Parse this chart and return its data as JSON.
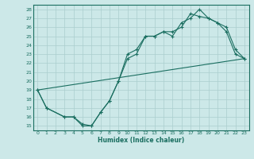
{
  "title": "",
  "xlabel": "Humidex (Indice chaleur)",
  "ylabel": "",
  "xlim": [
    -0.5,
    23.5
  ],
  "ylim": [
    14.5,
    28.5
  ],
  "yticks": [
    15,
    16,
    17,
    18,
    19,
    20,
    21,
    22,
    23,
    24,
    25,
    26,
    27,
    28
  ],
  "xticks": [
    0,
    1,
    2,
    3,
    4,
    5,
    6,
    7,
    8,
    9,
    10,
    11,
    12,
    13,
    14,
    15,
    16,
    17,
    18,
    19,
    20,
    21,
    22,
    23
  ],
  "bg_color": "#cce8e8",
  "grid_color": "#aacece",
  "line_color": "#1a6e60",
  "line1_x": [
    0,
    1,
    3,
    4,
    5,
    6,
    7,
    8,
    9,
    10,
    11,
    12,
    13,
    14,
    15,
    16,
    17,
    18,
    19,
    20,
    21,
    22,
    23
  ],
  "line1_y": [
    19,
    17,
    16,
    16,
    15,
    15,
    16.5,
    17.8,
    20,
    22.5,
    23,
    25,
    25,
    25.5,
    25,
    26.5,
    27,
    28,
    27,
    26.5,
    26,
    23.5,
    22.5
  ],
  "line2_x": [
    0,
    1,
    3,
    4,
    5,
    6,
    7,
    8,
    9,
    10,
    11,
    12,
    13,
    14,
    15,
    16,
    17,
    18,
    19,
    20,
    21,
    22,
    23
  ],
  "line2_y": [
    19,
    17,
    16,
    16,
    15.2,
    15,
    16.5,
    17.8,
    20,
    23,
    23.5,
    25,
    25,
    25.5,
    25.5,
    26,
    27.5,
    27.2,
    27,
    26.5,
    25.5,
    23,
    22.5
  ],
  "line3_x": [
    0,
    23
  ],
  "line3_y": [
    19,
    22.5
  ]
}
